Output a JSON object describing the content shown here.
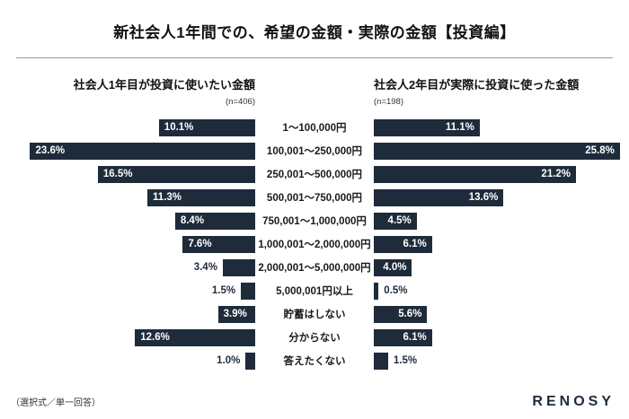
{
  "title": "新社会人1年間での、希望の金額・実際の金額【投資編】",
  "footer": {
    "note": "（選択式／単一回答）",
    "logo": "RENOSY"
  },
  "chart_data": {
    "type": "bar",
    "orientation": "horizontal-bilateral",
    "title": "新社会人1年間での、希望の金額・実際の金額【投資編】",
    "categories": [
      "1〜100,000円",
      "100,001〜250,000円",
      "250,001〜500,000円",
      "500,001〜750,000円",
      "750,001〜1,000,000円",
      "1,000,001〜2,000,000円",
      "2,000,001〜5,000,000円",
      "5,000,001円以上",
      "貯蓄はしない",
      "分からない",
      "答えたくない"
    ],
    "series": [
      {
        "name": "社会人1年目が投資に使いたい金額",
        "n_label": "(n=406)",
        "values": [
          10.1,
          23.6,
          16.5,
          11.3,
          8.4,
          7.6,
          3.4,
          1.5,
          3.9,
          12.6,
          1.0
        ]
      },
      {
        "name": "社会人2年目が実際に投資に使った金額",
        "n_label": "(n=198)",
        "values": [
          11.1,
          25.8,
          21.2,
          13.6,
          4.5,
          6.1,
          4.0,
          0.5,
          5.6,
          6.1,
          1.5
        ]
      }
    ],
    "value_suffix": "%",
    "xmax": 26,
    "inside_label_threshold": 3.9,
    "bar_color": "#1e2b3a",
    "inside_label_color": "#ffffff",
    "outside_label_color": "#1e2b3a",
    "legend_position": "column-headers",
    "grid": false
  }
}
